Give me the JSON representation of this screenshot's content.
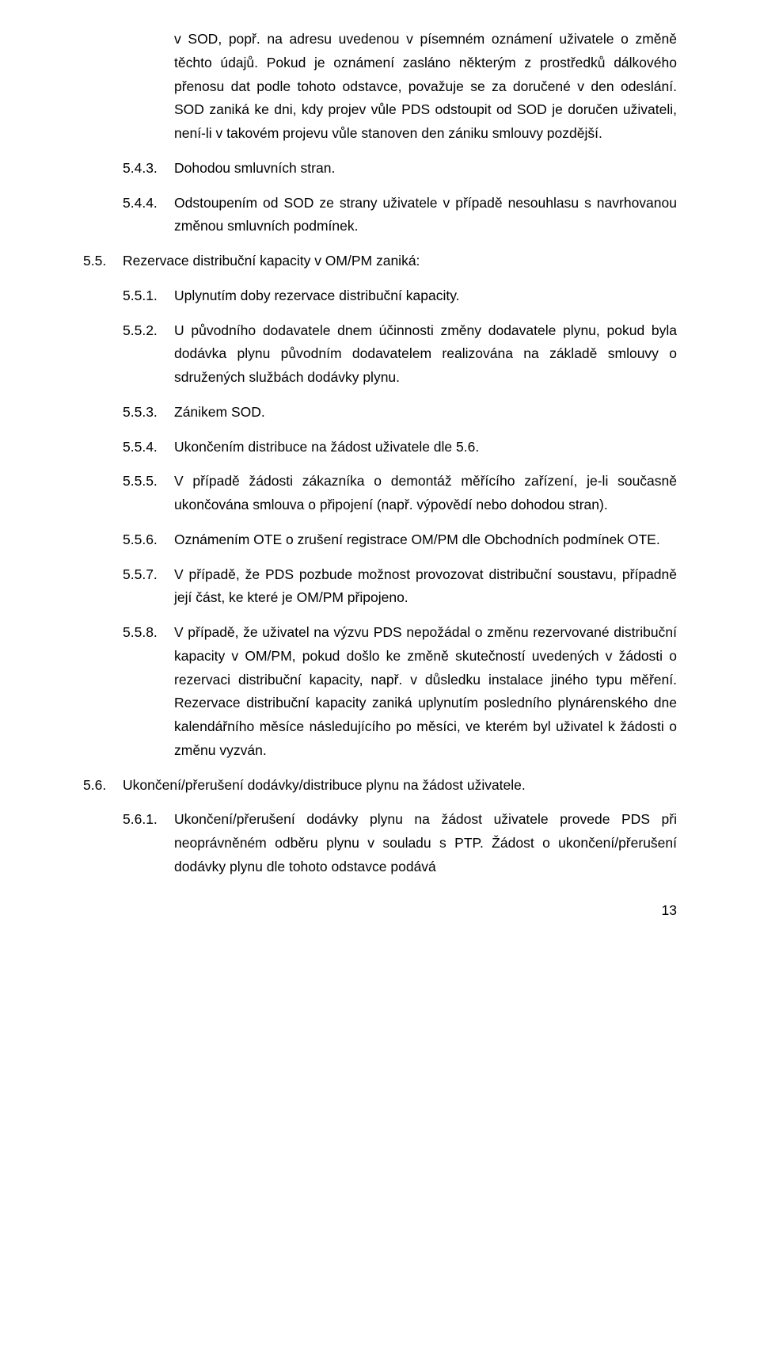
{
  "continuation_para": "v SOD, popř. na adresu uvedenou v písemném oznámení uživatele o změně těchto údajů. Pokud je oznámení zasláno některým z prostředků dálkového přenosu dat podle tohoto odstavce, považuje se za doručené v den odeslání. SOD zaniká ke dni, kdy projev vůle PDS odstoupit od SOD je doručen uživateli, není-li v takovém projevu vůle stanoven den zániku smlouvy pozdější.",
  "items": [
    {
      "level": 2,
      "num": "5.4.3.",
      "text": "Dohodou smluvních stran."
    },
    {
      "level": 2,
      "num": "5.4.4.",
      "text": "Odstoupením od SOD ze strany uživatele v případě nesouhlasu s navrhovanou změnou smluvních podmínek."
    },
    {
      "level": 1,
      "num": "5.5.",
      "text": "Rezervace distribuční kapacity v OM/PM zaniká:"
    },
    {
      "level": 2,
      "num": "5.5.1.",
      "text": "Uplynutím doby rezervace distribuční kapacity."
    },
    {
      "level": 2,
      "num": "5.5.2.",
      "text": "U původního dodavatele dnem účinnosti změny dodavatele plynu, pokud byla dodávka plynu původním dodavatelem realizována na základě smlouvy o sdružených službách dodávky plynu."
    },
    {
      "level": 2,
      "num": "5.5.3.",
      "text": "Zánikem SOD."
    },
    {
      "level": 2,
      "num": "5.5.4.",
      "text": "Ukončením distribuce na žádost uživatele dle 5.6."
    },
    {
      "level": 2,
      "num": "5.5.5.",
      "text": "V případě žádosti zákazníka o demontáž měřícího zařízení, je-li současně ukončována smlouva o připojení (např. výpovědí nebo dohodou stran)."
    },
    {
      "level": 2,
      "num": "5.5.6.",
      "text": "Oznámením OTE o zrušení registrace OM/PM dle Obchodních podmínek OTE."
    },
    {
      "level": 2,
      "num": "5.5.7.",
      "text": "V případě, že PDS pozbude možnost provozovat distribuční soustavu, případně její část, ke které je OM/PM připojeno."
    },
    {
      "level": 2,
      "num": "5.5.8.",
      "text": "V případě, že uživatel na výzvu PDS nepožádal o změnu rezervované distribuční kapacity v OM/PM, pokud došlo ke změně skutečností uvedených v žádosti o rezervaci distribuční kapacity, např. v důsledku instalace jiného typu měření. Rezervace distribuční kapacity zaniká uplynutím posledního plynárenského dne kalendářního měsíce následujícího po měsíci, ve kterém byl uživatel k žádosti o změnu vyzván."
    },
    {
      "level": 1,
      "num": "5.6.",
      "text": "Ukončení/přerušení dodávky/distribuce plynu na žádost uživatele."
    },
    {
      "level": 2,
      "num": "5.6.1.",
      "text": "Ukončení/přerušení dodávky plynu na žádost uživatele provede PDS při neoprávněném odběru plynu v souladu s PTP. Žádost o ukončení/přerušení dodávky plynu dle tohoto odstavce podává"
    }
  ],
  "page_number": "13"
}
